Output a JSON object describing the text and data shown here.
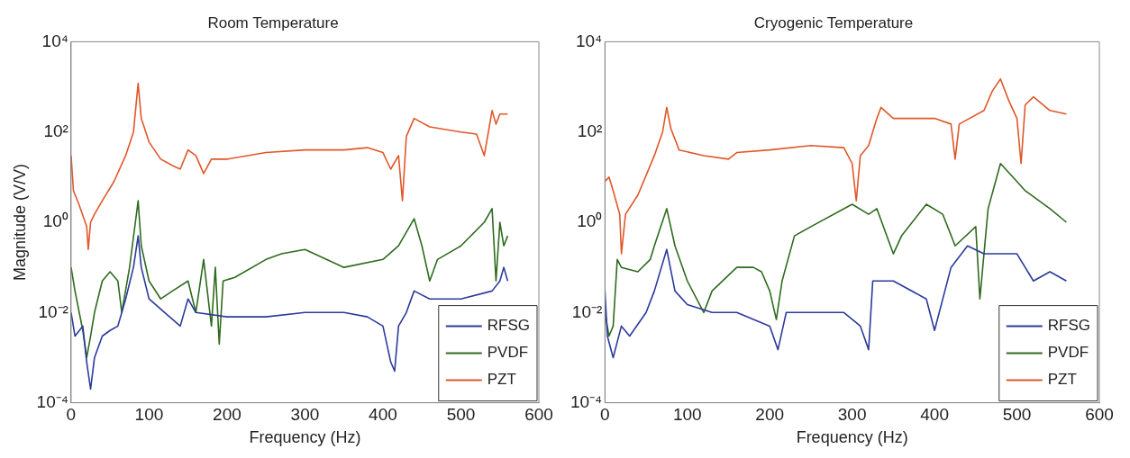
{
  "chart_data": [
    {
      "type": "line",
      "title": "Room Temperature",
      "xlabel": "Frequency (Hz)",
      "ylabel": "Magnitude (V/V)",
      "xlim": [
        0,
        600
      ],
      "xticks": [
        0,
        100,
        200,
        300,
        400,
        500,
        600
      ],
      "ylim": [
        0.0001,
        10000
      ],
      "yticks": [
        {
          "value": 0.0001,
          "label": "10⁻⁴"
        },
        {
          "value": 0.01,
          "label": "10⁻²"
        },
        {
          "value": 1,
          "label": "10⁰"
        },
        {
          "value": 100,
          "label": "10²"
        },
        {
          "value": 10000,
          "label": "10⁴"
        }
      ],
      "log": "y",
      "grid": false,
      "legend": "bottom right",
      "series": [
        {
          "name": "RFSG",
          "color": "#2b3a9c",
          "x": [
            0,
            5,
            15,
            20,
            25,
            30,
            40,
            50,
            60,
            70,
            80,
            86,
            90,
            100,
            120,
            140,
            150,
            160,
            200,
            250,
            300,
            350,
            380,
            400,
            410,
            415,
            420,
            430,
            440,
            460,
            500,
            540,
            550,
            555,
            560
          ],
          "values": [
            0.01,
            0.003,
            0.005,
            0.0008,
            0.0002,
            0.001,
            0.003,
            0.004,
            0.005,
            0.02,
            0.1,
            0.5,
            0.1,
            0.02,
            0.01,
            0.005,
            0.02,
            0.01,
            0.008,
            0.008,
            0.01,
            0.01,
            0.008,
            0.005,
            0.0008,
            0.0005,
            0.005,
            0.01,
            0.03,
            0.02,
            0.02,
            0.03,
            0.05,
            0.1,
            0.05
          ]
        },
        {
          "name": "PVDF",
          "color": "#2e6b1e",
          "x": [
            0,
            5,
            15,
            20,
            25,
            30,
            40,
            50,
            60,
            65,
            75,
            86,
            90,
            100,
            115,
            130,
            150,
            160,
            170,
            180,
            185,
            190,
            195,
            210,
            250,
            270,
            300,
            350,
            400,
            420,
            440,
            450,
            460,
            470,
            500,
            530,
            540,
            545,
            550,
            555,
            560
          ],
          "values": [
            0.1,
            0.03,
            0.004,
            0.001,
            0.003,
            0.01,
            0.05,
            0.08,
            0.05,
            0.01,
            0.1,
            3,
            0.3,
            0.05,
            0.02,
            0.03,
            0.05,
            0.01,
            0.15,
            0.005,
            0.1,
            0.002,
            0.05,
            0.06,
            0.15,
            0.2,
            0.25,
            0.1,
            0.15,
            0.3,
            1.2,
            0.3,
            0.05,
            0.15,
            0.3,
            1,
            2,
            0.05,
            1,
            0.3,
            0.5
          ]
        },
        {
          "name": "PZT",
          "color": "#e0572a",
          "x": [
            0,
            3,
            10,
            20,
            22,
            25,
            30,
            40,
            55,
            70,
            80,
            86,
            90,
            100,
            115,
            130,
            140,
            150,
            160,
            170,
            180,
            200,
            250,
            300,
            350,
            380,
            400,
            410,
            420,
            425,
            430,
            440,
            460,
            500,
            520,
            530,
            540,
            545,
            550,
            560
          ],
          "values": [
            30,
            5,
            2.5,
            0.8,
            0.25,
            1,
            1.5,
            3,
            8,
            30,
            100,
            1200,
            200,
            60,
            25,
            18,
            15,
            40,
            30,
            12,
            25,
            25,
            35,
            40,
            40,
            45,
            35,
            15,
            30,
            3,
            80,
            200,
            130,
            100,
            90,
            30,
            300,
            150,
            250,
            250
          ]
        }
      ]
    },
    {
      "type": "line",
      "title": "Cryogenic Temperature",
      "xlabel": "Frequency (Hz)",
      "xlim": [
        0,
        600
      ],
      "xticks": [
        0,
        100,
        200,
        300,
        400,
        500,
        600
      ],
      "ylim": [
        0.0001,
        10000
      ],
      "yticks": [
        {
          "value": 0.0001,
          "label": "10⁻⁴"
        },
        {
          "value": 0.01,
          "label": "10⁻²"
        },
        {
          "value": 1,
          "label": "10⁰"
        },
        {
          "value": 100,
          "label": "10²"
        },
        {
          "value": 10000,
          "label": "10⁴"
        }
      ],
      "log": "y",
      "grid": false,
      "legend": "bottom right",
      "series": [
        {
          "name": "RFSG",
          "color": "#2b3a9c",
          "x": [
            0,
            3,
            10,
            20,
            30,
            50,
            60,
            75,
            85,
            100,
            130,
            160,
            200,
            210,
            220,
            250,
            290,
            310,
            320,
            325,
            350,
            390,
            400,
            420,
            440,
            460,
            500,
            520,
            540,
            560
          ],
          "values": [
            0.03,
            0.003,
            0.001,
            0.005,
            0.003,
            0.01,
            0.03,
            0.25,
            0.03,
            0.015,
            0.01,
            0.01,
            0.005,
            0.0015,
            0.01,
            0.01,
            0.01,
            0.005,
            0.0015,
            0.05,
            0.05,
            0.02,
            0.004,
            0.1,
            0.3,
            0.2,
            0.2,
            0.05,
            0.08,
            0.05
          ]
        },
        {
          "name": "PVDF",
          "color": "#2e6b1e",
          "x": [
            0,
            5,
            10,
            15,
            20,
            40,
            55,
            60,
            75,
            85,
            100,
            120,
            130,
            160,
            180,
            190,
            200,
            208,
            215,
            230,
            250,
            300,
            320,
            330,
            350,
            360,
            390,
            410,
            425,
            450,
            455,
            465,
            480,
            500,
            510,
            540,
            560
          ],
          "values": [
            0.01,
            0.003,
            0.005,
            0.15,
            0.1,
            0.08,
            0.15,
            0.3,
            2,
            0.3,
            0.05,
            0.01,
            0.03,
            0.1,
            0.1,
            0.08,
            0.03,
            0.007,
            0.05,
            0.5,
            0.8,
            2.5,
            1.5,
            2,
            0.2,
            0.5,
            2.5,
            1.5,
            0.3,
            0.8,
            0.02,
            2,
            20,
            8,
            5,
            2,
            1
          ]
        },
        {
          "name": "PZT",
          "color": "#e0572a",
          "x": [
            0,
            5,
            10,
            18,
            20,
            25,
            40,
            60,
            70,
            75,
            80,
            90,
            120,
            150,
            160,
            200,
            250,
            290,
            300,
            305,
            310,
            320,
            330,
            335,
            350,
            400,
            420,
            425,
            430,
            460,
            470,
            480,
            490,
            500,
            505,
            510,
            520,
            540,
            560
          ],
          "values": [
            8,
            10,
            5,
            1.5,
            0.2,
            1.5,
            4,
            30,
            100,
            350,
            120,
            40,
            30,
            25,
            35,
            40,
            50,
            45,
            20,
            3,
            30,
            50,
            200,
            350,
            200,
            200,
            150,
            25,
            150,
            300,
            800,
            1500,
            500,
            200,
            20,
            400,
            600,
            300,
            250
          ]
        }
      ]
    }
  ]
}
